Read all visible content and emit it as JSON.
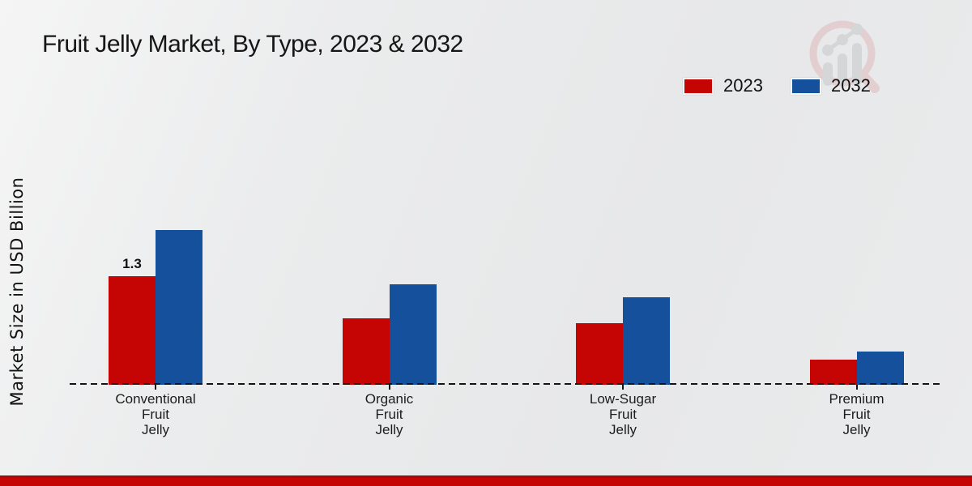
{
  "title": "Fruit Jelly Market, By Type, 2023 & 2032",
  "ylabel": "Market Size in USD Billion",
  "legend": {
    "items": [
      {
        "label": "2023",
        "color": "#c50404"
      },
      {
        "label": "2032",
        "color": "#14509c"
      }
    ]
  },
  "colors": {
    "series_2023": "#c50404",
    "series_2032": "#14509c",
    "footer_band": "#c50404",
    "axis": "#141414",
    "background": "#e9eaeb"
  },
  "chart_data": {
    "type": "bar",
    "title": "Fruit Jelly Market, By Type, 2023 & 2032",
    "xlabel": "",
    "ylabel": "Market Size in USD Billion",
    "categories": [
      "Conventional Fruit Jelly",
      "Organic Fruit Jelly",
      "Low-Sugar Fruit Jelly",
      "Premium Fruit Jelly"
    ],
    "series": [
      {
        "name": "2023",
        "color": "#c50404",
        "values": [
          1.3,
          0.8,
          0.74,
          0.3
        ]
      },
      {
        "name": "2032",
        "color": "#14509c",
        "values": [
          1.85,
          1.2,
          1.05,
          0.4
        ]
      }
    ],
    "annotations": [
      {
        "series": "2023",
        "category_index": 0,
        "text": "1.3"
      }
    ],
    "ylim": [
      0,
      2.2
    ],
    "grid": false,
    "legend_position": "top-right",
    "axis_style": "dashed-baseline-only"
  }
}
